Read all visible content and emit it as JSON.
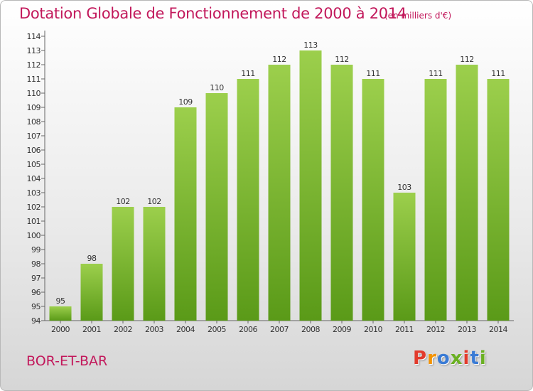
{
  "header": {
    "title": "Dotation Globale de Fonctionnement de 2000 à 2014",
    "unit_note": "(en milliers d'€)"
  },
  "footer": {
    "commune": "BOR-ET-BAR",
    "logo_text": "Proxiti"
  },
  "colors": {
    "accent_text": "#c2185b",
    "bar_top": "#9ccf4c",
    "bar_bottom": "#5a9a18",
    "logo_letters": [
      "#e23a2c",
      "#f39200",
      "#3a7bd5",
      "#6ab023",
      "#e23a2c",
      "#3a7bd5",
      "#6ab023"
    ]
  },
  "chart_data": {
    "type": "bar",
    "title": "Dotation Globale de Fonctionnement de 2000 à 2014",
    "subtitle": "(en milliers d'€)",
    "xlabel": "",
    "ylabel": "",
    "categories": [
      "2000",
      "2001",
      "2002",
      "2003",
      "2004",
      "2005",
      "2006",
      "2007",
      "2008",
      "2009",
      "2010",
      "2011",
      "2012",
      "2013",
      "2014"
    ],
    "values": [
      95,
      98,
      102,
      102,
      109,
      110,
      111,
      112,
      113,
      112,
      111,
      103,
      111,
      112,
      111
    ],
    "value_labels": [
      "95",
      "98",
      "102",
      "102",
      "109",
      "110",
      "111",
      "112",
      "113",
      "112",
      "111",
      "103",
      "111",
      "112",
      "111"
    ],
    "ylim": [
      94,
      114
    ],
    "yticks": [
      94,
      95,
      96,
      97,
      98,
      99,
      100,
      101,
      102,
      103,
      104,
      105,
      106,
      107,
      108,
      109,
      110,
      111,
      112,
      113,
      114
    ],
    "ytick_labels": [
      "94",
      "95",
      "96",
      "97",
      "98",
      "99",
      "100",
      "101",
      "102",
      "103",
      "104",
      "105",
      "106",
      "107",
      "108",
      "109",
      "110",
      "111",
      "112",
      "113",
      "114"
    ],
    "grid": false,
    "legend": "none"
  }
}
